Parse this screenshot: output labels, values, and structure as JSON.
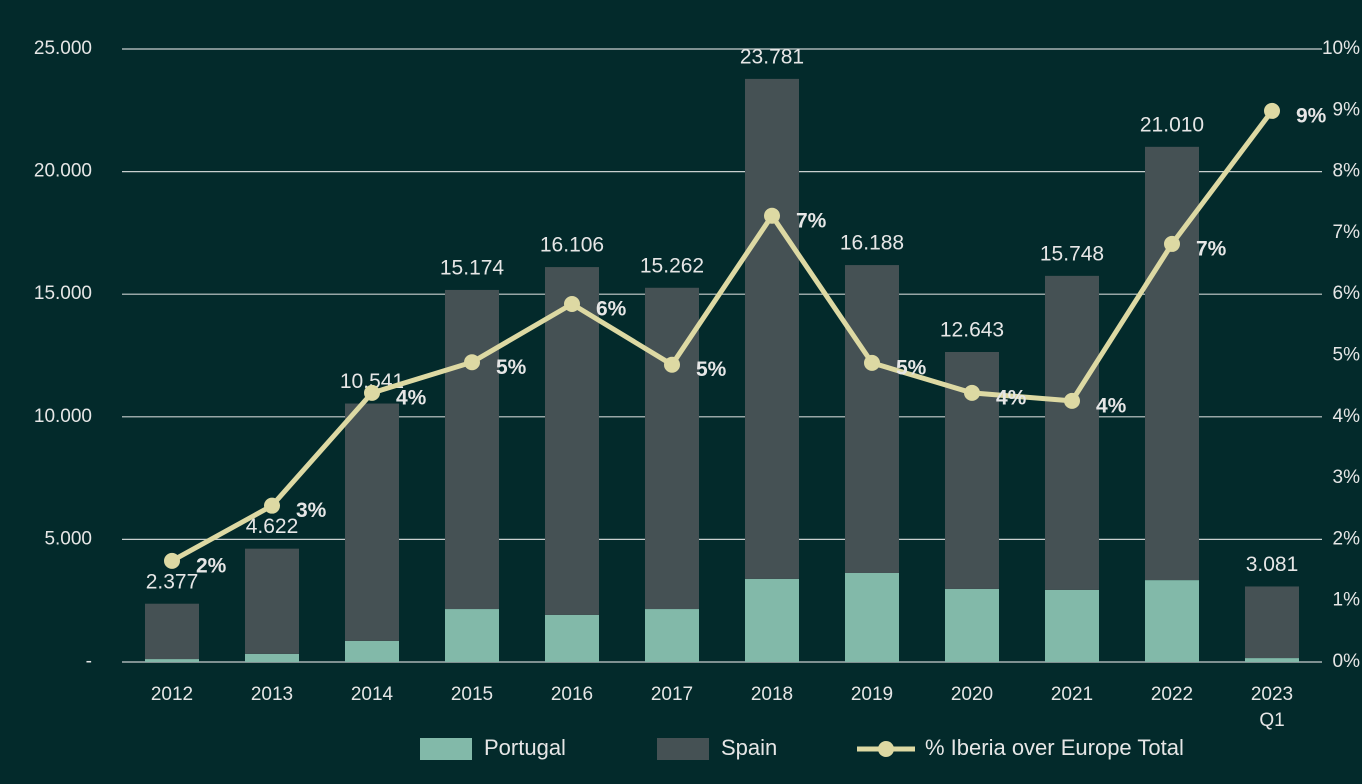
{
  "chart_data": {
    "type": "bar",
    "categories": [
      "2012",
      "2013",
      "2014",
      "2015",
      "2016",
      "2017",
      "2018",
      "2019",
      "2020",
      "2021",
      "2022",
      "2023\nQ1"
    ],
    "series": [
      {
        "name": "Portugal",
        "color": "#82b9a9",
        "values": [
          120,
          330,
          860,
          2160,
          1920,
          2160,
          3390,
          3630,
          2980,
          2940,
          3340,
          160
        ]
      },
      {
        "name": "Spain",
        "color": "#455154",
        "values": [
          2257,
          4292,
          9681,
          13014,
          14186,
          13102,
          20391,
          12558,
          9663,
          12808,
          17670,
          2921
        ]
      },
      {
        "name": "% Iberia over Europe Total",
        "type": "line",
        "axis": "y2",
        "color": "#ddd9a3",
        "values": [
          1.65,
          2.55,
          4.39,
          4.89,
          5.84,
          4.85,
          7.28,
          4.88,
          4.39,
          4.26,
          6.82,
          8.99
        ],
        "value_labels": [
          "2%",
          "3%",
          "4%",
          "5%",
          "6%",
          "5%",
          "7%",
          "5%",
          "4%",
          "4%",
          "7%",
          "9%"
        ]
      }
    ],
    "totals": {
      "values": [
        2377,
        4622,
        10541,
        15174,
        16106,
        15262,
        23781,
        16188,
        12643,
        15748,
        21010,
        3081
      ],
      "value_labels": [
        "2.377",
        "4.622",
        "10.541",
        "15.174",
        "16.106",
        "15.262",
        "23.781",
        "16.188",
        "12.643",
        "15.748",
        "21.010",
        "3.081"
      ]
    },
    "ylim": [
      0,
      25000
    ],
    "yticks": [
      {
        "value": 0,
        "label": "-"
      },
      {
        "value": 5000,
        "label": "5.000"
      },
      {
        "value": 10000,
        "label": "10.000"
      },
      {
        "value": 15000,
        "label": "15.000"
      },
      {
        "value": 20000,
        "label": "20.000"
      },
      {
        "value": 25000,
        "label": "25.000"
      }
    ],
    "y2lim": [
      0,
      10
    ],
    "y2ticks": [
      {
        "value": 0,
        "label": "0%"
      },
      {
        "value": 1,
        "label": "1%"
      },
      {
        "value": 2,
        "label": "2%"
      },
      {
        "value": 3,
        "label": "3%"
      },
      {
        "value": 4,
        "label": "4%"
      },
      {
        "value": 5,
        "label": "5%"
      },
      {
        "value": 6,
        "label": "6%"
      },
      {
        "value": 7,
        "label": "7%"
      },
      {
        "value": 8,
        "label": "8%"
      },
      {
        "value": 9,
        "label": "9%"
      },
      {
        "value": 10,
        "label": "10%"
      }
    ],
    "grid": true,
    "legend": "bottom"
  }
}
